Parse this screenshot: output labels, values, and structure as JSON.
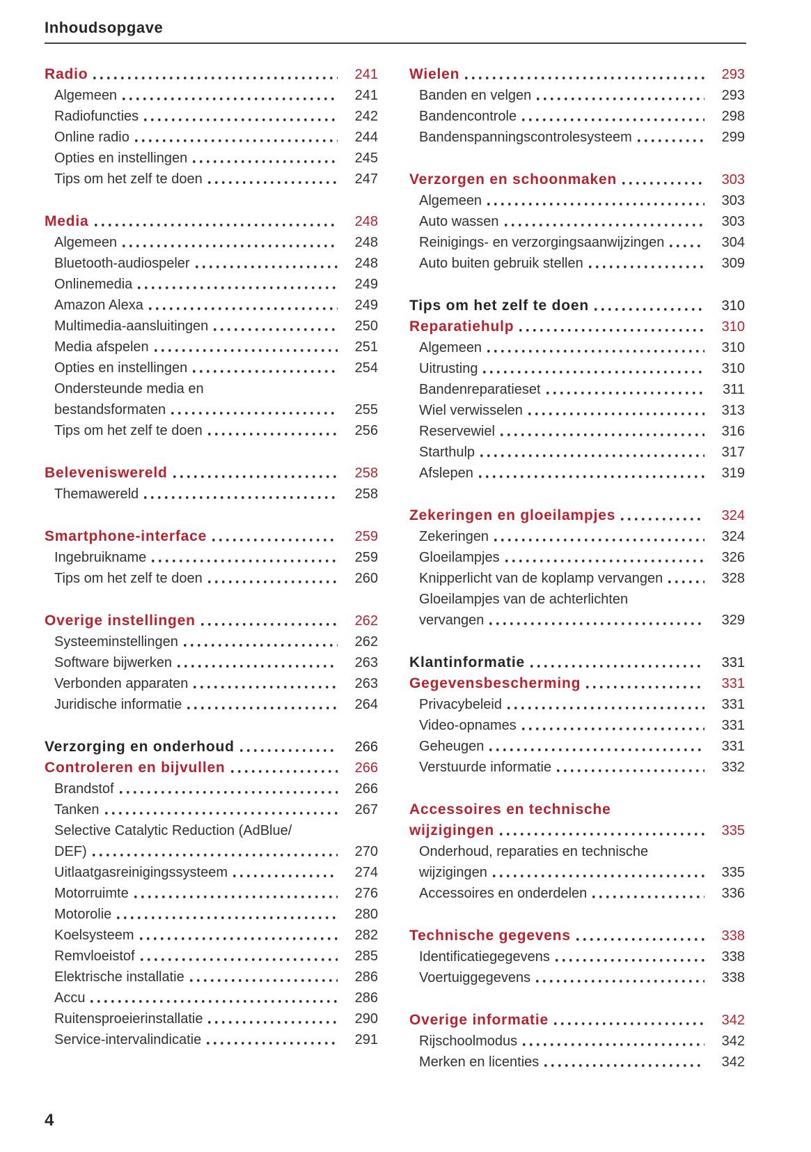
{
  "header": {
    "title": "Inhoudsopgave"
  },
  "footer": {
    "page_number": "4"
  },
  "colors": {
    "accent_red": "#b4232e",
    "text_dark": "#303036",
    "heading_dark": "#26262a"
  },
  "toc": {
    "columns": [
      {
        "groups": [
          {
            "entries": [
              {
                "label": "Radio",
                "page": "241",
                "style": "section-red"
              },
              {
                "label": "Algemeen",
                "page": "241",
                "style": "item"
              },
              {
                "label": "Radiofuncties",
                "page": "242",
                "style": "item"
              },
              {
                "label": "Online radio",
                "page": "244",
                "style": "item"
              },
              {
                "label": "Opties en instellingen",
                "page": "245",
                "style": "item"
              },
              {
                "label": "Tips om het zelf te doen",
                "page": "247",
                "style": "item"
              }
            ]
          },
          {
            "entries": [
              {
                "label": "Media",
                "page": "248",
                "style": "section-red"
              },
              {
                "label": "Algemeen",
                "page": "248",
                "style": "item"
              },
              {
                "label": "Bluetooth-audiospeler",
                "page": "248",
                "style": "item"
              },
              {
                "label": "Onlinemedia",
                "page": "249",
                "style": "item"
              },
              {
                "label": "Amazon Alexa",
                "page": "249",
                "style": "item"
              },
              {
                "label": "Multimedia-aansluitingen",
                "page": "250",
                "style": "item"
              },
              {
                "label": "Media afspelen",
                "page": "251",
                "style": "item"
              },
              {
                "label": "Opties en instellingen",
                "page": "254",
                "style": "item"
              },
              {
                "label": "Ondersteunde media en",
                "label2": "bestandsformaten",
                "page": "255",
                "style": "item"
              },
              {
                "label": "Tips om het zelf te doen",
                "page": "256",
                "style": "item"
              }
            ]
          },
          {
            "entries": [
              {
                "label": "Beleveniswereld",
                "page": "258",
                "style": "section-red"
              },
              {
                "label": "Themawereld",
                "page": "258",
                "style": "item"
              }
            ]
          },
          {
            "entries": [
              {
                "label": "Smartphone-interface",
                "page": "259",
                "style": "section-red"
              },
              {
                "label": "Ingebruikname",
                "page": "259",
                "style": "item"
              },
              {
                "label": "Tips om het zelf te doen",
                "page": "260",
                "style": "item"
              }
            ]
          },
          {
            "entries": [
              {
                "label": "Overige instellingen",
                "page": "262",
                "style": "section-red"
              },
              {
                "label": "Systeeminstellingen",
                "page": "262",
                "style": "item"
              },
              {
                "label": "Software bijwerken",
                "page": "263",
                "style": "item"
              },
              {
                "label": "Verbonden apparaten",
                "page": "263",
                "style": "item"
              },
              {
                "label": "Juridische informatie",
                "page": "264",
                "style": "item"
              }
            ]
          },
          {
            "entries": [
              {
                "label": "Verzorging en onderhoud",
                "page": "266",
                "style": "section-dark"
              },
              {
                "label": "Controleren en bijvullen",
                "page": "266",
                "style": "section-red"
              },
              {
                "label": "Brandstof",
                "page": "266",
                "style": "item"
              },
              {
                "label": "Tanken",
                "page": "267",
                "style": "item"
              },
              {
                "label": "Selective Catalytic Reduction (AdBlue/",
                "label2": "DEF)",
                "page": "270",
                "style": "item"
              },
              {
                "label": "Uitlaatgasreinigingssysteem",
                "page": "274",
                "style": "item"
              },
              {
                "label": "Motorruimte",
                "page": "276",
                "style": "item"
              },
              {
                "label": "Motorolie",
                "page": "280",
                "style": "item"
              },
              {
                "label": "Koelsysteem",
                "page": "282",
                "style": "item"
              },
              {
                "label": "Remvloeistof",
                "page": "285",
                "style": "item"
              },
              {
                "label": "Elektrische installatie",
                "page": "286",
                "style": "item"
              },
              {
                "label": "Accu",
                "page": "286",
                "style": "item"
              },
              {
                "label": "Ruitensproeierinstallatie",
                "page": "290",
                "style": "item"
              },
              {
                "label": "Service-intervalindicatie",
                "page": "291",
                "style": "item"
              }
            ]
          }
        ]
      },
      {
        "groups": [
          {
            "entries": [
              {
                "label": "Wielen",
                "page": "293",
                "style": "section-red"
              },
              {
                "label": "Banden en velgen",
                "page": "293",
                "style": "item"
              },
              {
                "label": "Bandencontrole",
                "page": "298",
                "style": "item"
              },
              {
                "label": "Bandenspanningscontrolesysteem",
                "page": "299",
                "style": "item"
              }
            ]
          },
          {
            "entries": [
              {
                "label": "Verzorgen en schoonmaken",
                "page": "303",
                "style": "section-red"
              },
              {
                "label": "Algemeen",
                "page": "303",
                "style": "item"
              },
              {
                "label": "Auto wassen",
                "page": "303",
                "style": "item"
              },
              {
                "label": "Reinigings- en verzorgingsaanwijzingen",
                "page": "304",
                "style": "item"
              },
              {
                "label": "Auto buiten gebruik stellen",
                "page": "309",
                "style": "item"
              }
            ]
          },
          {
            "entries": [
              {
                "label": "Tips om het zelf te doen",
                "page": "310",
                "style": "section-dark"
              },
              {
                "label": "Reparatiehulp",
                "page": "310",
                "style": "section-red"
              },
              {
                "label": "Algemeen",
                "page": "310",
                "style": "item"
              },
              {
                "label": "Uitrusting",
                "page": "310",
                "style": "item"
              },
              {
                "label": "Bandenreparatieset",
                "page": "311",
                "style": "item"
              },
              {
                "label": "Wiel verwisselen",
                "page": "313",
                "style": "item"
              },
              {
                "label": "Reservewiel",
                "page": "316",
                "style": "item"
              },
              {
                "label": "Starthulp",
                "page": "317",
                "style": "item"
              },
              {
                "label": "Afslepen",
                "page": "319",
                "style": "item"
              }
            ]
          },
          {
            "entries": [
              {
                "label": "Zekeringen en gloeilampjes",
                "page": "324",
                "style": "section-red"
              },
              {
                "label": "Zekeringen",
                "page": "324",
                "style": "item"
              },
              {
                "label": "Gloeilampjes",
                "page": "326",
                "style": "item"
              },
              {
                "label": "Knipperlicht van de koplamp vervangen",
                "page": "328",
                "style": "item"
              },
              {
                "label": "Gloeilampjes van de achterlichten",
                "label2": "vervangen",
                "page": "329",
                "style": "item"
              }
            ]
          },
          {
            "entries": [
              {
                "label": "Klantinformatie",
                "page": "331",
                "style": "section-dark"
              },
              {
                "label": "Gegevensbescherming",
                "page": "331",
                "style": "section-red"
              },
              {
                "label": "Privacybeleid",
                "page": "331",
                "style": "item"
              },
              {
                "label": "Video-opnames",
                "page": "331",
                "style": "item"
              },
              {
                "label": "Geheugen",
                "page": "331",
                "style": "item"
              },
              {
                "label": "Verstuurde informatie",
                "page": "332",
                "style": "item"
              }
            ]
          },
          {
            "entries": [
              {
                "label": "Accessoires en technische",
                "label2": "wijzigingen",
                "page": "335",
                "style": "section-red"
              },
              {
                "label": "Onderhoud, reparaties en technische",
                "label2": "wijzigingen",
                "page": "335",
                "style": "item"
              },
              {
                "label": "Accessoires en onderdelen",
                "page": "336",
                "style": "item"
              }
            ]
          },
          {
            "entries": [
              {
                "label": "Technische gegevens",
                "page": "338",
                "style": "section-red"
              },
              {
                "label": "Identificatiegegevens",
                "page": "338",
                "style": "item"
              },
              {
                "label": "Voertuiggegevens",
                "page": "338",
                "style": "item"
              }
            ]
          },
          {
            "entries": [
              {
                "label": "Overige informatie",
                "page": "342",
                "style": "section-red"
              },
              {
                "label": "Rijschoolmodus",
                "page": "342",
                "style": "item"
              },
              {
                "label": "Merken en licenties",
                "page": "342",
                "style": "item"
              }
            ]
          }
        ]
      }
    ]
  }
}
